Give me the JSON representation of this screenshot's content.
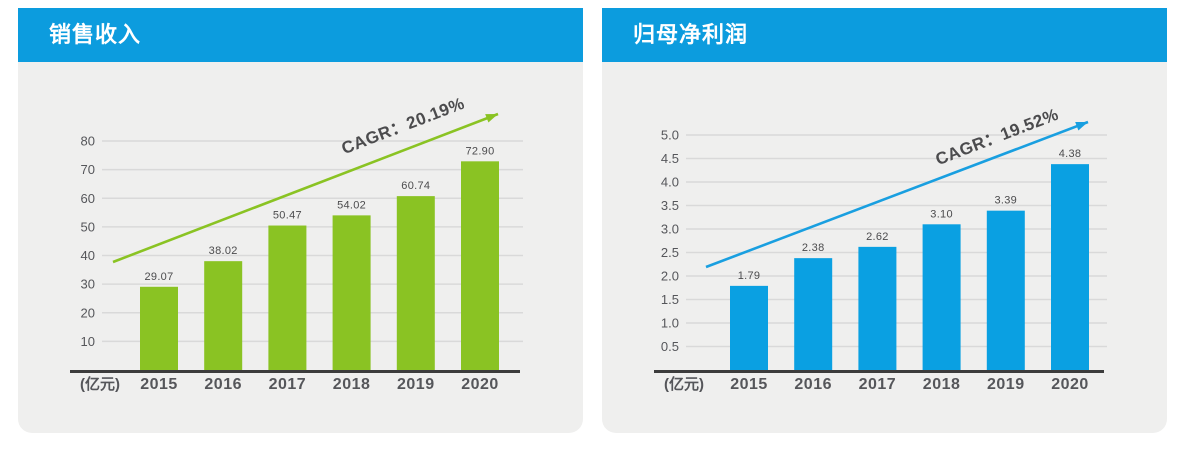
{
  "colors": {
    "header_bg": "#0C9CDE",
    "panel_bg": "#EFEFEE",
    "grid_line": "#D9D9D9",
    "axis_line": "#3C3C3C",
    "tick_text": "#55565A",
    "value_text": "#4B4B4D",
    "cagr_text": "#4B4B4D",
    "green_accent": "#8AC323",
    "blue_accent": "#0AA0E2"
  },
  "chart_data": [
    {
      "type": "bar",
      "title": "销售收入",
      "unit_label": "(亿元)",
      "categories": [
        "2015",
        "2016",
        "2017",
        "2018",
        "2019",
        "2020"
      ],
      "values": [
        29.07,
        38.02,
        50.47,
        54.02,
        60.74,
        72.9
      ],
      "value_labels": [
        "29.07",
        "38.02",
        "50.47",
        "54.02",
        "60.74",
        "72.90"
      ],
      "y_ticks": [
        "80",
        "70",
        "60",
        "50",
        "40",
        "30",
        "20",
        "10"
      ],
      "ylim": [
        0,
        80
      ],
      "grid": "on",
      "cagr_label": "CAGR：20.19%",
      "bar_color": "#8AC323",
      "arrow_color": "#8AC323"
    },
    {
      "type": "bar",
      "title": "归母净利润",
      "unit_label": "(亿元)",
      "categories": [
        "2015",
        "2016",
        "2017",
        "2018",
        "2019",
        "2020"
      ],
      "values": [
        1.79,
        2.38,
        2.62,
        3.1,
        3.39,
        4.38
      ],
      "value_labels": [
        "1.79",
        "2.38",
        "2.62",
        "3.10",
        "3.39",
        "4.38"
      ],
      "y_ticks": [
        "5.0",
        "4.5",
        "4.0",
        "3.5",
        "3.0",
        "2.5",
        "2.0",
        "1.5",
        "1.0",
        "0.5"
      ],
      "ylim": [
        0,
        5.0
      ],
      "grid": "on",
      "cagr_label": "CAGR：19.52%",
      "bar_color": "#0AA0E2",
      "arrow_color": "#199FE0"
    }
  ]
}
